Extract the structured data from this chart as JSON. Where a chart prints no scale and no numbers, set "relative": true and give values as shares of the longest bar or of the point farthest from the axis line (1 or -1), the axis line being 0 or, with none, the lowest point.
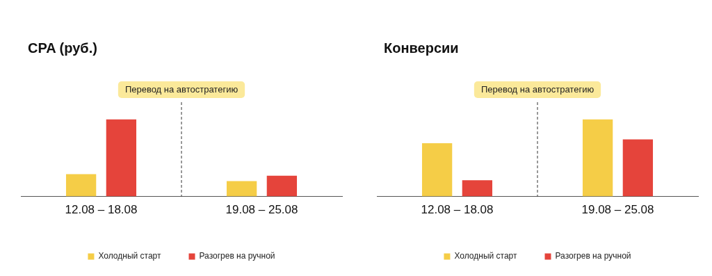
{
  "chart_data": [
    {
      "type": "bar",
      "title": "CPA (руб.)",
      "categories": [
        "12.08 – 18.08",
        "19.08 – 25.08"
      ],
      "relative": true,
      "legend": "bottom",
      "grid": false,
      "series": [
        {
          "name": "Холодный старт",
          "color": "#f5cd47",
          "values": [
            0.29,
            0.2
          ]
        },
        {
          "name": "Разогрев на ручной",
          "color": "#e5443b",
          "values": [
            1,
            0.27
          ]
        }
      ],
      "annotations": [
        "Перевод на автостратегию"
      ]
    },
    {
      "type": "bar",
      "title": "Конверсии",
      "categories": [
        "12.08 – 18.08",
        "19.08 – 25.08"
      ],
      "relative": true,
      "legend": "bottom",
      "grid": false,
      "series": [
        {
          "name": "Холодный старт",
          "color": "#f5cd47",
          "values": [
            0.69,
            1
          ]
        },
        {
          "name": "Разогрев на ручной",
          "color": "#e5443b",
          "values": [
            0.21,
            0.74
          ]
        }
      ],
      "annotations": [
        "Перевод на автостратегию"
      ]
    }
  ]
}
